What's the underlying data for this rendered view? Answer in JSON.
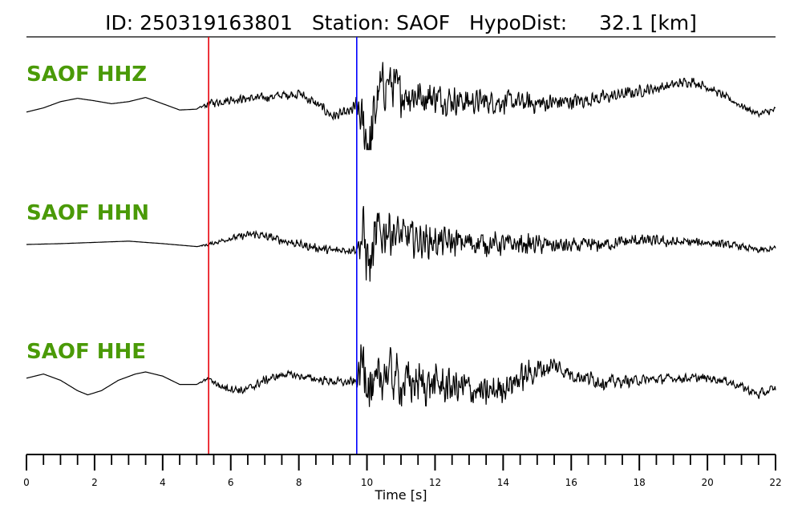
{
  "chart_data": {
    "type": "line",
    "title": {
      "id_label": "ID:",
      "id_value": "250319163801",
      "station_label": "Station:",
      "station_value": "SAOF",
      "hypodist_label": "HypoDist:",
      "hypodist_value": "32.1",
      "hypodist_unit": "[km]"
    },
    "xlabel": "Time [s]",
    "xlim": [
      0,
      22
    ],
    "x_ticks": [
      "0",
      "2",
      "4",
      "6",
      "8",
      "10",
      "12",
      "14",
      "16",
      "18",
      "20",
      "22"
    ],
    "x_tick_values": [
      0,
      2,
      4,
      6,
      8,
      10,
      12,
      14,
      16,
      18,
      20,
      22
    ],
    "minor_tick_step": 0.5,
    "markers": [
      {
        "phase": "P",
        "time": 5.35,
        "color": "#e8000b"
      },
      {
        "phase": "S",
        "time": 9.7,
        "color": "#0000ff"
      }
    ],
    "trace_color": "#000000",
    "label_color": "#4a9a07",
    "series": [
      {
        "name": "SAOF HHZ",
        "t": [
          0,
          0.5,
          1,
          1.5,
          2,
          2.5,
          3,
          3.5,
          4,
          4.5,
          5,
          5.35,
          6,
          7,
          8,
          8.6,
          9,
          9.5,
          9.7,
          9.9,
          10.1,
          10.3,
          10.6,
          11,
          12,
          13,
          14,
          15,
          16,
          17,
          18,
          19,
          19.5,
          20,
          21,
          21.5,
          22
        ],
        "value": [
          -0.15,
          -0.05,
          0.1,
          0.18,
          0.12,
          0.05,
          0.1,
          0.2,
          0.05,
          -0.1,
          -0.08,
          0.05,
          0.15,
          0.2,
          0.3,
          0,
          -0.25,
          -0.15,
          0,
          -0.6,
          -1.0,
          0.2,
          0.6,
          0.3,
          0.2,
          0.1,
          0.1,
          0.05,
          0.1,
          0.2,
          0.35,
          0.5,
          0.6,
          0.45,
          0,
          -0.2,
          -0.1
        ],
        "noise": [
          0,
          0,
          0,
          0,
          0,
          0,
          0,
          0,
          0,
          0,
          0,
          0.12,
          0.12,
          0.12,
          0.15,
          0.15,
          0.15,
          0.15,
          0.3,
          0.9,
          1.0,
          0.9,
          0.7,
          0.6,
          0.45,
          0.38,
          0.33,
          0.28,
          0.24,
          0.2,
          0.17,
          0.15,
          0.15,
          0.12,
          0.1,
          0.1,
          0.1
        ]
      },
      {
        "name": "SAOF HHN",
        "t": [
          0,
          1,
          2,
          3,
          4,
          5,
          5.35,
          6,
          6.7,
          7.5,
          8.3,
          9,
          9.7,
          9.9,
          10.1,
          10.3,
          10.6,
          11,
          12,
          13,
          14,
          15,
          16,
          17,
          18,
          19,
          20,
          21,
          21.5,
          22
        ],
        "value": [
          0,
          0.02,
          0.05,
          0.08,
          0.02,
          -0.05,
          0,
          0.15,
          0.25,
          0.1,
          -0.05,
          -0.15,
          -0.1,
          0.2,
          -0.6,
          0.2,
          0.4,
          0.2,
          0.05,
          0.05,
          0,
          0,
          -0.05,
          0,
          0.1,
          0.05,
          0.05,
          -0.05,
          -0.15,
          -0.1
        ],
        "noise": [
          0,
          0,
          0,
          0,
          0,
          0,
          0.05,
          0.08,
          0.12,
          0.12,
          0.12,
          0.12,
          0.15,
          0.9,
          1.0,
          0.9,
          0.7,
          0.55,
          0.45,
          0.38,
          0.32,
          0.27,
          0.23,
          0.2,
          0.17,
          0.15,
          0.12,
          0.1,
          0.1,
          0.1
        ]
      },
      {
        "name": "SAOF HHE",
        "t": [
          0,
          0.5,
          1,
          1.5,
          1.8,
          2.2,
          2.7,
          3.2,
          3.5,
          4,
          4.5,
          5,
          5.35,
          5.7,
          6.4,
          7,
          7.6,
          8,
          8.7,
          9.3,
          9.7,
          9.9,
          10.2,
          10.5,
          11,
          12,
          13,
          13.5,
          14,
          15,
          15.5,
          16,
          17,
          18,
          19,
          20,
          20.5,
          21,
          21.5,
          22
        ],
        "value": [
          0.1,
          0.2,
          0.05,
          -0.2,
          -0.3,
          -0.2,
          0.05,
          0.2,
          0.25,
          0.15,
          -0.05,
          -0.05,
          0.1,
          -0.1,
          -0.2,
          0.05,
          0.2,
          0.15,
          0.05,
          0,
          0,
          0.6,
          -0.4,
          0.3,
          0,
          -0.05,
          -0.15,
          -0.3,
          -0.1,
          0.3,
          0.4,
          0.2,
          0,
          0.05,
          0.1,
          0.1,
          0.05,
          -0.1,
          -0.3,
          -0.15
        ],
        "noise": [
          0,
          0,
          0,
          0,
          0,
          0,
          0,
          0,
          0,
          0,
          0,
          0,
          0.06,
          0.12,
          0.12,
          0.12,
          0.1,
          0.1,
          0.12,
          0.12,
          0.15,
          1.0,
          0.9,
          0.8,
          0.7,
          0.55,
          0.5,
          0.45,
          0.45,
          0.35,
          0.3,
          0.25,
          0.2,
          0.15,
          0.13,
          0.12,
          0.12,
          0.12,
          0.15,
          0.15
        ]
      }
    ]
  }
}
